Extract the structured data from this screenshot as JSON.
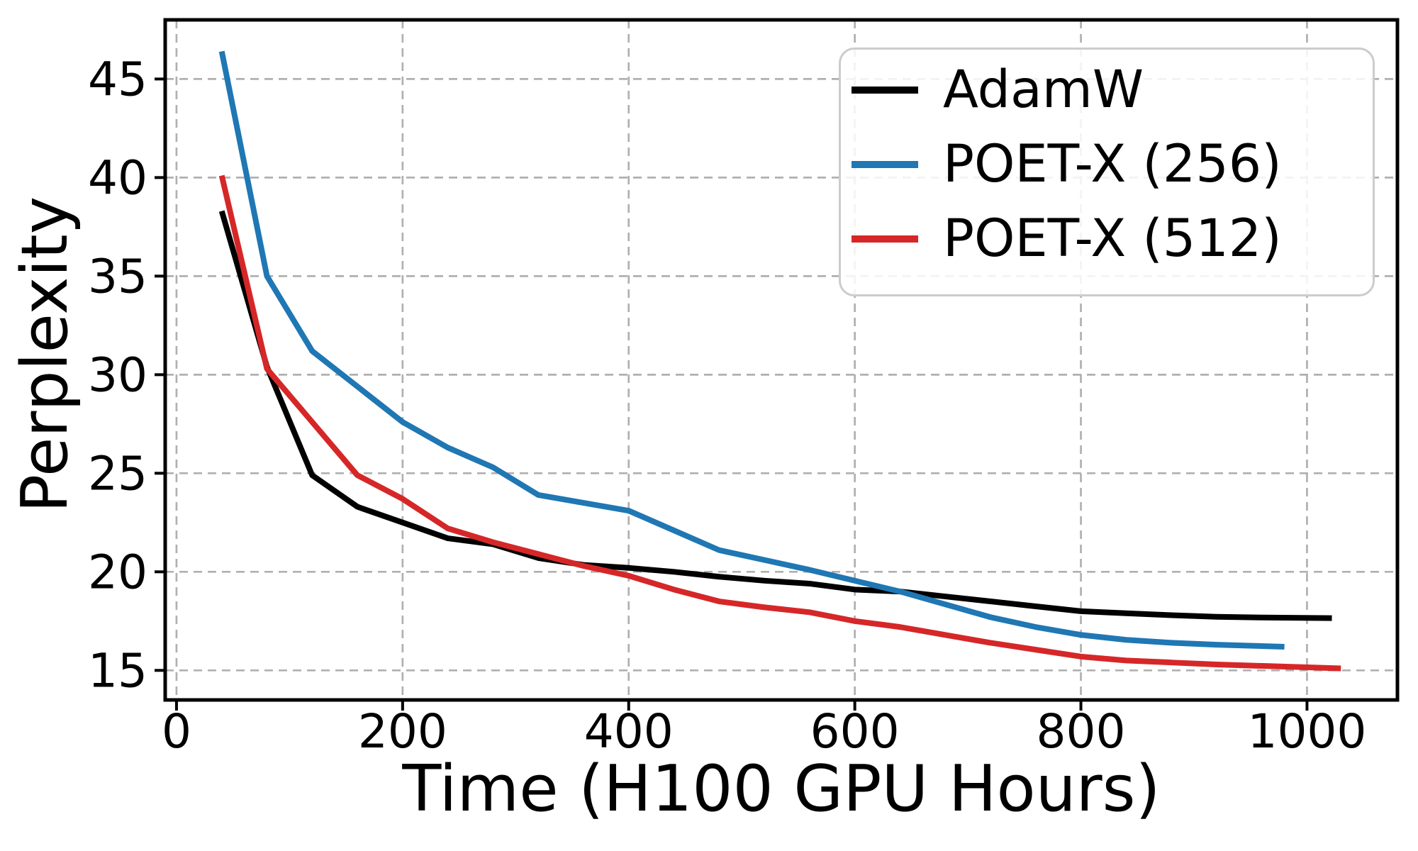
{
  "figure": {
    "xlabel": "Time (H100 GPU Hours)",
    "ylabel": "Perplexity"
  },
  "legend": {
    "position": "upper right",
    "items": [
      {
        "label": "AdamW",
        "color": "#000000"
      },
      {
        "label": "POET-X (256)",
        "color": "#1f77b4"
      },
      {
        "label": "POET-X (512)",
        "color": "#d62728"
      }
    ]
  },
  "chart_data": {
    "type": "line",
    "title": "",
    "xlabel": "Time (H100 GPU Hours)",
    "ylabel": "Perplexity",
    "xlim": [
      -10,
      1080
    ],
    "ylim": [
      13.5,
      48
    ],
    "xticks": [
      0,
      200,
      400,
      600,
      800,
      1000
    ],
    "yticks": [
      15,
      20,
      25,
      30,
      35,
      40,
      45
    ],
    "grid": true,
    "grid_style": "dashed",
    "legend_position": "upper right",
    "series": [
      {
        "name": "AdamW",
        "color": "#000000",
        "points": [
          [
            40,
            38.3
          ],
          [
            80,
            30.4
          ],
          [
            120,
            24.9
          ],
          [
            160,
            23.3
          ],
          [
            200,
            22.5
          ],
          [
            240,
            21.7
          ],
          [
            280,
            21.4
          ],
          [
            320,
            20.7
          ],
          [
            360,
            20.35
          ],
          [
            400,
            20.2
          ],
          [
            440,
            20.0
          ],
          [
            480,
            19.75
          ],
          [
            520,
            19.55
          ],
          [
            560,
            19.4
          ],
          [
            600,
            19.1
          ],
          [
            640,
            19.0
          ],
          [
            680,
            18.75
          ],
          [
            720,
            18.5
          ],
          [
            760,
            18.25
          ],
          [
            800,
            18.0
          ],
          [
            840,
            17.9
          ],
          [
            880,
            17.8
          ],
          [
            920,
            17.72
          ],
          [
            960,
            17.68
          ],
          [
            1022,
            17.65
          ]
        ]
      },
      {
        "name": "POET-X (256)",
        "color": "#1f77b4",
        "points": [
          [
            40,
            46.4
          ],
          [
            80,
            35.0
          ],
          [
            120,
            31.2
          ],
          [
            160,
            29.4
          ],
          [
            200,
            27.6
          ],
          [
            240,
            26.3
          ],
          [
            280,
            25.3
          ],
          [
            320,
            23.9
          ],
          [
            360,
            23.5
          ],
          [
            400,
            23.1
          ],
          [
            440,
            22.1
          ],
          [
            480,
            21.1
          ],
          [
            520,
            20.6
          ],
          [
            560,
            20.1
          ],
          [
            600,
            19.55
          ],
          [
            640,
            19.0
          ],
          [
            680,
            18.35
          ],
          [
            720,
            17.7
          ],
          [
            760,
            17.2
          ],
          [
            800,
            16.8
          ],
          [
            840,
            16.55
          ],
          [
            880,
            16.4
          ],
          [
            920,
            16.3
          ],
          [
            980,
            16.2
          ]
        ]
      },
      {
        "name": "POET-X (512)",
        "color": "#d62728",
        "points": [
          [
            40,
            40.1
          ],
          [
            80,
            30.3
          ],
          [
            120,
            27.6
          ],
          [
            160,
            24.9
          ],
          [
            200,
            23.7
          ],
          [
            240,
            22.2
          ],
          [
            280,
            21.5
          ],
          [
            320,
            20.9
          ],
          [
            360,
            20.3
          ],
          [
            400,
            19.8
          ],
          [
            440,
            19.1
          ],
          [
            480,
            18.5
          ],
          [
            520,
            18.2
          ],
          [
            560,
            17.95
          ],
          [
            600,
            17.5
          ],
          [
            640,
            17.2
          ],
          [
            680,
            16.8
          ],
          [
            720,
            16.4
          ],
          [
            760,
            16.05
          ],
          [
            800,
            15.7
          ],
          [
            840,
            15.5
          ],
          [
            880,
            15.4
          ],
          [
            920,
            15.3
          ],
          [
            1030,
            15.1
          ]
        ]
      }
    ]
  }
}
